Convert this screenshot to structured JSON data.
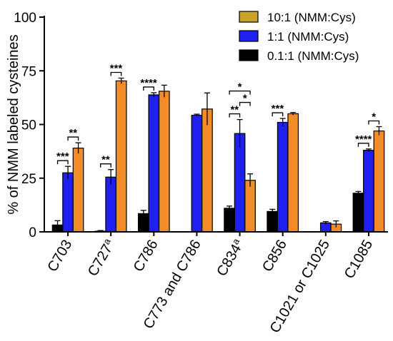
{
  "chart_data": {
    "type": "bar",
    "ylabel": "% of NMM labeled cysteines",
    "ylim": [
      0,
      100
    ],
    "yticks": [
      0,
      25,
      50,
      75,
      100
    ],
    "grid": false,
    "legend_position": "top-right",
    "categories": [
      "C703",
      "C727",
      "C786",
      "C773 and C786",
      "C834",
      "C856",
      "C1021 or C1025",
      "C1085"
    ],
    "category_superscripts": [
      "",
      "a",
      "",
      "",
      "a",
      "",
      "",
      ""
    ],
    "series": [
      {
        "name": "0.1:1 (NMM:Cys)",
        "color": "#000000",
        "values": [
          3.2,
          0.3,
          8.5,
          null,
          11.0,
          9.5,
          null,
          18.0
        ],
        "errors": [
          2.0,
          0.3,
          1.5,
          null,
          1.0,
          1.0,
          null,
          0.8
        ]
      },
      {
        "name": "1:1 (NMM:Cys)",
        "color": "#1f1ff0",
        "values": [
          27.5,
          25.5,
          63.8,
          54.3,
          45.8,
          51.0,
          4.2,
          38.0
        ],
        "errors": [
          3.0,
          3.5,
          1.0,
          0.5,
          6.5,
          1.8,
          0.6,
          0.6
        ]
      },
      {
        "name": "10:1 (NMM:Cys)",
        "color": "#f28c28",
        "values": [
          39.0,
          70.3,
          65.5,
          57.2,
          24.0,
          55.0,
          3.6,
          47.0
        ],
        "errors": [
          2.5,
          1.3,
          2.8,
          7.5,
          3.0,
          0.6,
          1.5,
          2.0
        ]
      }
    ],
    "legend": [
      {
        "label": "10:1 (NMM:Cys)",
        "color": "#c9a32b"
      },
      {
        "label": "1:1 (NMM:Cys)",
        "color": "#1f1ff0"
      },
      {
        "label": "0.1:1 (NMM:Cys)",
        "color": "#000000"
      }
    ],
    "significance": [
      {
        "category": 0,
        "from": 0,
        "to": 1,
        "label": "***"
      },
      {
        "category": 0,
        "from": 1,
        "to": 2,
        "label": "**"
      },
      {
        "category": 1,
        "from": 0,
        "to": 1,
        "label": "**"
      },
      {
        "category": 1,
        "from": 1,
        "to": 2,
        "label": "***"
      },
      {
        "category": 2,
        "from": 0,
        "to": 1,
        "label": "****"
      },
      {
        "category": 4,
        "from": 0,
        "to": 1,
        "label": "**"
      },
      {
        "category": 4,
        "from": 1,
        "to": 2,
        "label": "*"
      },
      {
        "category": 4,
        "from": 0,
        "to": 2,
        "label": "*"
      },
      {
        "category": 5,
        "from": 0,
        "to": 1,
        "label": "***"
      },
      {
        "category": 7,
        "from": 0,
        "to": 1,
        "label": "****"
      },
      {
        "category": 7,
        "from": 1,
        "to": 2,
        "label": "*"
      }
    ]
  }
}
